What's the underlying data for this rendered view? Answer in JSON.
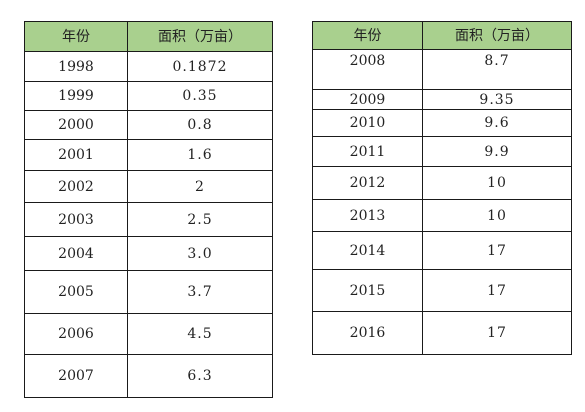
{
  "left_table": {
    "headers": [
      "年份",
      "面积（万亩）"
    ],
    "rows": [
      [
        "1998",
        "0.1872"
      ],
      [
        "1999",
        "0.35"
      ],
      [
        "2000",
        "0.8"
      ],
      [
        "2001",
        "1.6"
      ],
      [
        "2002",
        "2"
      ],
      [
        "2003",
        "2.5"
      ],
      [
        "2004",
        "3.0"
      ],
      [
        "2005",
        "3.7"
      ],
      [
        "2006",
        "4.5"
      ],
      [
        "2007",
        "6.3"
      ]
    ]
  },
  "right_table": {
    "headers": [
      "年份",
      "面积（万亩）"
    ],
    "rows": [
      [
        "2008",
        "8.7"
      ],
      [
        "2009",
        "9.35"
      ],
      [
        "2010",
        "9.6"
      ],
      [
        "2011",
        "9.9"
      ],
      [
        "2012",
        "10"
      ],
      [
        "2013",
        "10"
      ],
      [
        "2014",
        "17"
      ],
      [
        "2015",
        "17"
      ],
      [
        "2016",
        "17"
      ]
    ]
  },
  "colors": {
    "header_bg": "#a9d08e",
    "border": "#1a1a1a"
  }
}
